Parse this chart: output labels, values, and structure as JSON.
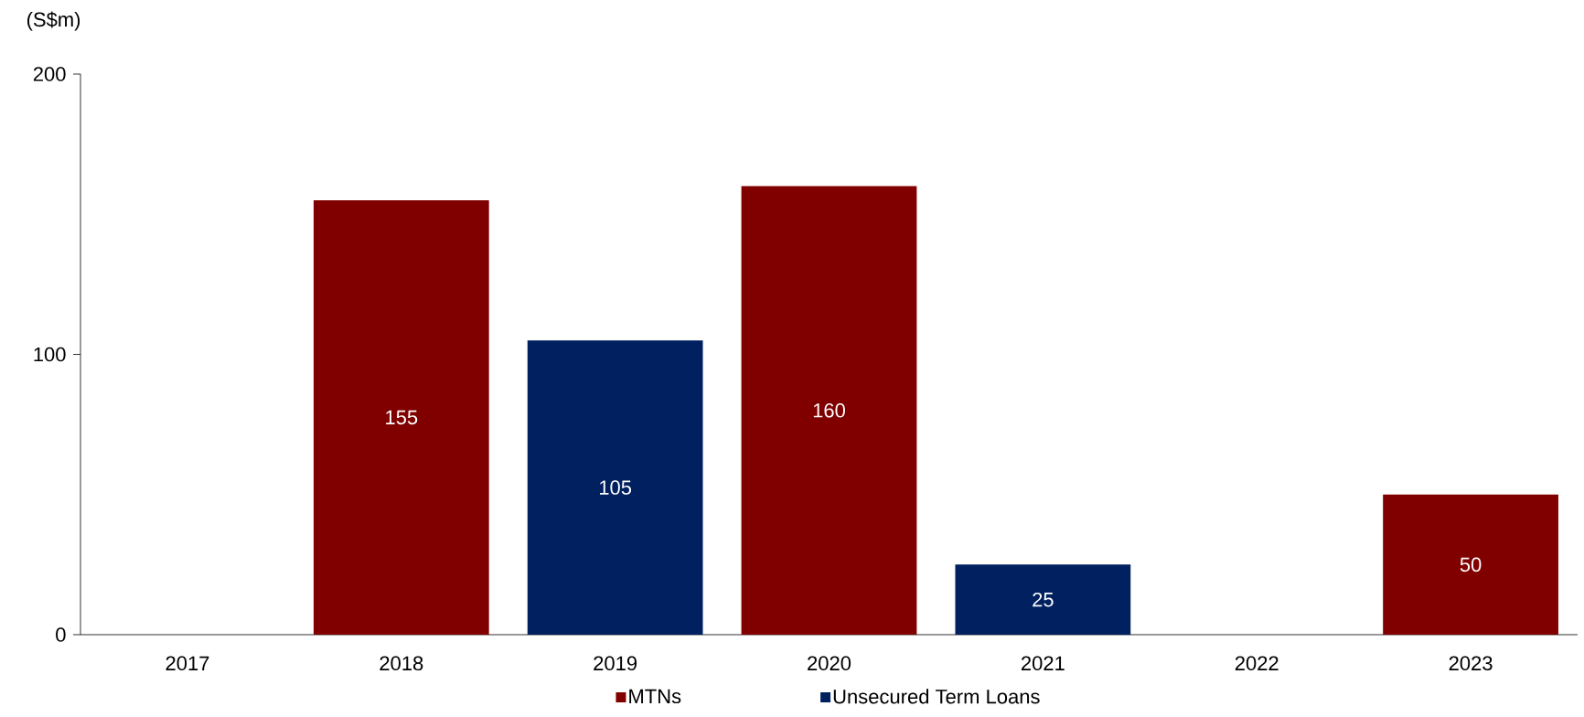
{
  "chart_data": {
    "type": "bar",
    "stacked": true,
    "ylabel": "(S$m)",
    "categories": [
      "2017",
      "2018",
      "2019",
      "2020",
      "2021",
      "2022",
      "2023"
    ],
    "series": [
      {
        "name": "MTNs",
        "color": "#800000",
        "values": [
          null,
          155,
          null,
          160,
          null,
          null,
          50
        ]
      },
      {
        "name": "Unsecured Term Loans",
        "color": "#002060",
        "values": [
          null,
          null,
          105,
          null,
          25,
          null,
          null
        ]
      }
    ],
    "ylim": [
      0,
      200
    ],
    "yticks": [
      0,
      100,
      200
    ],
    "data_labels": true,
    "legend": "bottom",
    "grid": false
  }
}
